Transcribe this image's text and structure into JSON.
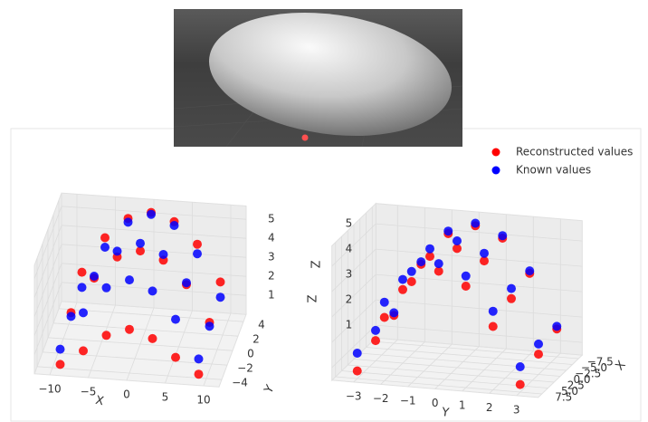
{
  "chart_data": [
    {
      "type": "scatter3d",
      "xlabel": "X",
      "ylabel": "Y",
      "zlabel": "Z",
      "xlim": [
        -12,
        12
      ],
      "ylim": [
        -5,
        5
      ],
      "zlim": [
        0,
        5.7
      ],
      "xticks": [
        {
          "value": -10,
          "label": "−10"
        },
        {
          "value": -5,
          "label": "−5"
        },
        0,
        5,
        10
      ],
      "yticks": [
        {
          "value": -4,
          "label": "−4"
        },
        {
          "value": -2,
          "label": "−2"
        },
        0,
        2,
        4
      ],
      "zticks": [
        1,
        2,
        3,
        4,
        5
      ],
      "grid": true,
      "series": [
        {
          "color": "red",
          "x": [
            -9,
            -6,
            -3,
            0,
            3,
            6,
            9,
            -9,
            -6,
            -3,
            0,
            3,
            6,
            9,
            -9,
            -6,
            -3,
            0,
            3,
            6,
            9
          ],
          "y": [
            -4,
            -4,
            -4,
            -4,
            -4,
            -4,
            -4,
            0,
            0,
            0,
            0,
            0,
            0,
            0,
            4,
            4,
            4,
            4,
            4,
            4,
            4
          ],
          "z": [
            0.2,
            1.0,
            1.9,
            2.3,
            1.9,
            1.0,
            0.2,
            1.4,
            3.3,
            4.5,
            4.9,
            4.5,
            3.3,
            1.4,
            2.0,
            3.9,
            5.0,
            5.4,
            5.0,
            3.9,
            2.0
          ]
        },
        {
          "color": "blue",
          "x": [
            -9,
            -6,
            -3,
            0,
            3,
            6,
            9,
            -9,
            -6,
            -3,
            0,
            3,
            6,
            9,
            -9,
            -6,
            -3,
            0,
            3,
            6,
            9
          ],
          "y": [
            -4,
            -4,
            -4,
            -4,
            -4,
            -4,
            -4,
            0,
            0,
            0,
            0,
            0,
            0,
            0,
            4,
            4,
            4,
            4,
            4,
            4,
            4
          ],
          "z": [
            1.0,
            3.0,
            4.4,
            4.9,
            4.4,
            3.0,
            1.0,
            1.2,
            3.4,
            4.8,
            5.3,
            4.8,
            3.4,
            1.2,
            1.2,
            3.4,
            4.8,
            5.3,
            4.8,
            3.4,
            1.2
          ]
        }
      ]
    },
    {
      "type": "scatter3d",
      "xlabel": "X",
      "ylabel": "Y",
      "zlabel": "Z",
      "xlim": [
        -9,
        9
      ],
      "ylim": [
        -3.8,
        3.8
      ],
      "zlim": [
        0.5,
        5.8
      ],
      "xticks": [
        {
          "value": -7.5,
          "label": "−7.5"
        },
        {
          "value": -5,
          "label": "−5.0"
        },
        {
          "value": -2.5,
          "label": "−2.5"
        },
        {
          "value": 0,
          "label": "0.0"
        },
        2.5,
        {
          "value": 5,
          "label": "5.0"
        },
        7.5
      ],
      "yticks": [
        {
          "value": -3,
          "label": "−3"
        },
        {
          "value": -2,
          "label": "−2"
        },
        {
          "value": -1,
          "label": "−1"
        },
        0,
        1,
        2,
        3
      ],
      "zticks": [
        1,
        2,
        3,
        4,
        5
      ],
      "grid": true,
      "legend": "upper right",
      "series": [
        {
          "name": "Reconstructed values",
          "color": "red",
          "x": [
            -7.5,
            -7.5,
            -7.5,
            -7.5,
            -7.5,
            -7.5,
            -7.5,
            0,
            0,
            0,
            0,
            0,
            0,
            0,
            7.5,
            7.5,
            7.5,
            7.5,
            7.5,
            7.5,
            7.5
          ],
          "y": [
            -3,
            -2,
            -1,
            0,
            1,
            2,
            3,
            -3,
            -2,
            -1,
            0,
            1,
            2,
            3,
            -3,
            -2,
            -1,
            0,
            1,
            2,
            3
          ],
          "z": [
            1.6,
            3.7,
            5.0,
            5.4,
            5.0,
            3.7,
            1.6,
            1.3,
            3.4,
            4.8,
            5.2,
            4.8,
            3.4,
            1.3,
            0.8,
            3.0,
            4.5,
            5.0,
            4.5,
            3.0,
            0.8
          ]
        },
        {
          "name": "Known values",
          "color": "blue",
          "x": [
            -7.5,
            -7.5,
            -7.5,
            -7.5,
            -7.5,
            -7.5,
            -7.5,
            0,
            0,
            0,
            0,
            0,
            0,
            0,
            7.5,
            7.5,
            7.5,
            7.5,
            7.5,
            7.5,
            7.5
          ],
          "y": [
            -3,
            -2,
            -1,
            0,
            1,
            2,
            3,
            -3,
            -2,
            -1,
            0,
            1,
            2,
            3,
            -3,
            -2,
            -1,
            0,
            1,
            2,
            3
          ],
          "z": [
            1.7,
            3.8,
            5.1,
            5.5,
            5.1,
            3.8,
            1.7,
            1.7,
            3.8,
            5.1,
            5.5,
            5.1,
            3.8,
            1.7,
            1.5,
            3.6,
            4.9,
            5.3,
            4.9,
            3.6,
            1.5
          ]
        }
      ]
    }
  ]
}
